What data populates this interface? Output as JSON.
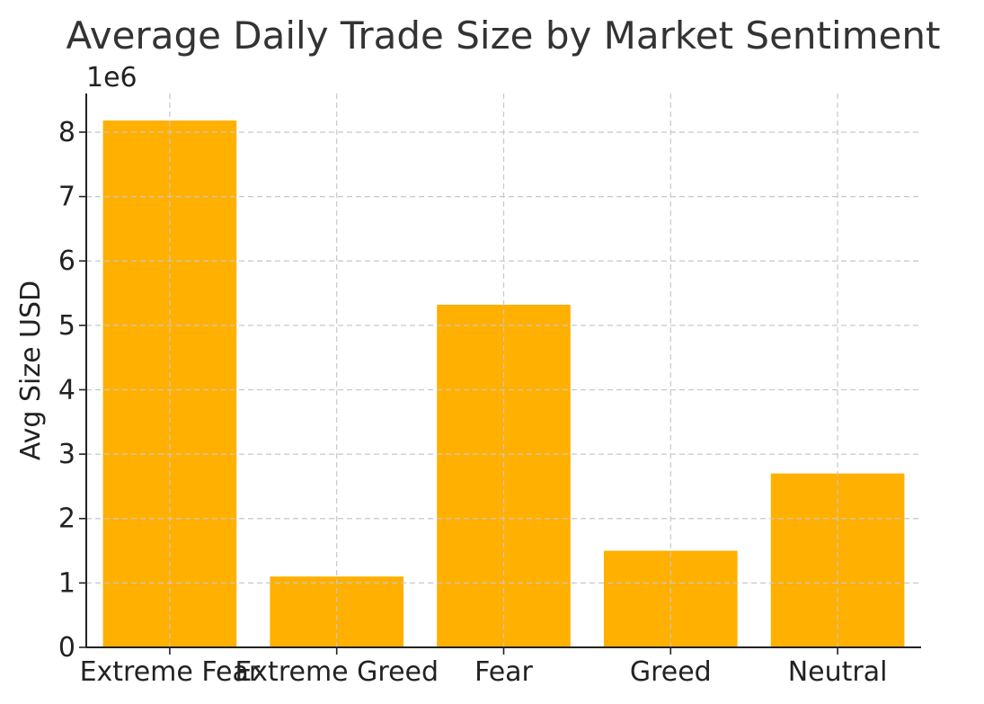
{
  "chart_data": {
    "type": "bar",
    "title": "Average Daily Trade Size by Market Sentiment",
    "xlabel": "",
    "ylabel": "Avg Size USD",
    "y_offset_label": "1e6",
    "categories": [
      "Extreme Fear",
      "Extreme Greed",
      "Fear",
      "Greed",
      "Neutral"
    ],
    "values": [
      8180000,
      1100000,
      5320000,
      1500000,
      2700000
    ],
    "ylim": [
      0,
      8600000
    ],
    "yticks": [
      0,
      1,
      2,
      3,
      4,
      5,
      6,
      7,
      8
    ],
    "ytick_scale": 1000000,
    "grid": true,
    "bar_color": "#FFB000"
  }
}
